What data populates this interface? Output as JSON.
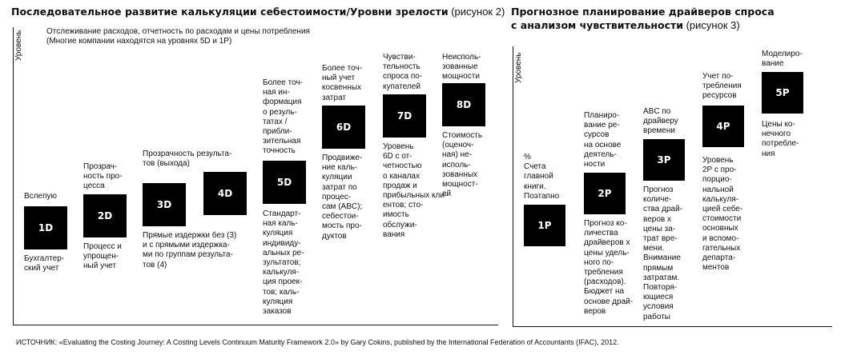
{
  "left": {
    "title_bold": "Последовательное развитие калькуляции себестоимости/Уровни зрелости",
    "title_rest": " (рисунок 2)",
    "axis_label": "Уровень",
    "subtitle": "Отслеживание расходов, отчетность по расходам и цены потребления\n(Многие компании находятся на уровнях 5D и 1P)",
    "levels": [
      {
        "code": "1D",
        "above": "Вслепую",
        "below": "Бухгалтер-\nский учет"
      },
      {
        "code": "2D",
        "above": "Прозрач-\nность про-\nцесса",
        "below": "Процесс и\nупрощен-\nный учет"
      },
      {
        "code": "3D",
        "above": "Прозрачность результа-\nтов (выхода)",
        "below": "Прямые издержки без (3)\nи с прямыми издержка-\nми по группам результа-\nтов (4)"
      },
      {
        "code": "4D",
        "above": "",
        "below": ""
      },
      {
        "code": "5D",
        "above": "Более точ-\nная ин-\nформация\nо резуль-\nтатах /\nприбли-\nзительная\nточность",
        "below": "Стандарт-\nная каль-\nкуляция\nиндивиду-\nальных ре-\nзультатов;\nкалькуля-\nция проек-\nтов; каль-\nкуляция\nзаказов"
      },
      {
        "code": "6D",
        "above": "Более точ-\nный учет\nкосвенных\nзатрат",
        "below": "Продвиже-\nние каль-\nкуляции\nзатрат по\nпроцес-\nсам (ABC);\nсебестои-\nмость про-\nдуктов"
      },
      {
        "code": "7D",
        "above": "Чувстви-\nтельность\nспроса по-\nкупателей",
        "below": "Уровень\n6D с от-\nчетностью\nо каналах\nпродаж и\nприбыльных кли-\nентов; сто-\nимость\nобслужи-\nвания"
      },
      {
        "code": "8D",
        "above": "Неисполь-\nзованные\nмощности",
        "below": "Стоимость\n(оценоч-\nная) не-\nисполь-\nзованных\nмощност-\nей"
      }
    ]
  },
  "right": {
    "title_bold_1": "Прогнозное планирование драйверов спроса",
    "title_bold_2": "с анализом чувствительности",
    "title_rest": " (рисунок 3)",
    "axis_label": "Уровень",
    "levels": [
      {
        "code": "1P",
        "above": "%\nСчета\nглавной\nкниги.\nПоэтапно",
        "below": ""
      },
      {
        "code": "2P",
        "above": "Планиро-\nвание ре-\nсурсов\nна основе\nдеятель-\nности",
        "below": "Прогноз ко-\nличества\nдрайверов х\nцены удель-\nного по-\nтребления\n(расходов).\nБюджет на\nоснове драй-\nверов"
      },
      {
        "code": "3P",
        "above": "ABC по\nдрайверу\nвремени",
        "below": "Прогноз\nколиче-\nства драй-\nверов х\nцены за-\nтрат вре-\nмени.\nВнимание\nпрямым\nзатратам.\nПовторя-\nющиеся\nусловия\nработы"
      },
      {
        "code": "4P",
        "above": "Учет по-\nтребления\nресурсов",
        "below": "Уровень\n2P с про-\nпорцио-\nнальной\nкалькуля-\nцией себе-\nстоимости\nосновных\nи вспомо-\nгательных\nдепартa-\nментов"
      },
      {
        "code": "5P",
        "above": "Моделиро-\nвание",
        "below": "Цены ко-\nнечного\nпотребле-\nния"
      }
    ]
  },
  "source": "ИСТОЧНИК: «Evaluating the Costing Journey: A Costing Levels Continuum Maturity Framework 2.0» by Gary Cokins, published by the International Federation of Accountants (IFAC), 2012."
}
